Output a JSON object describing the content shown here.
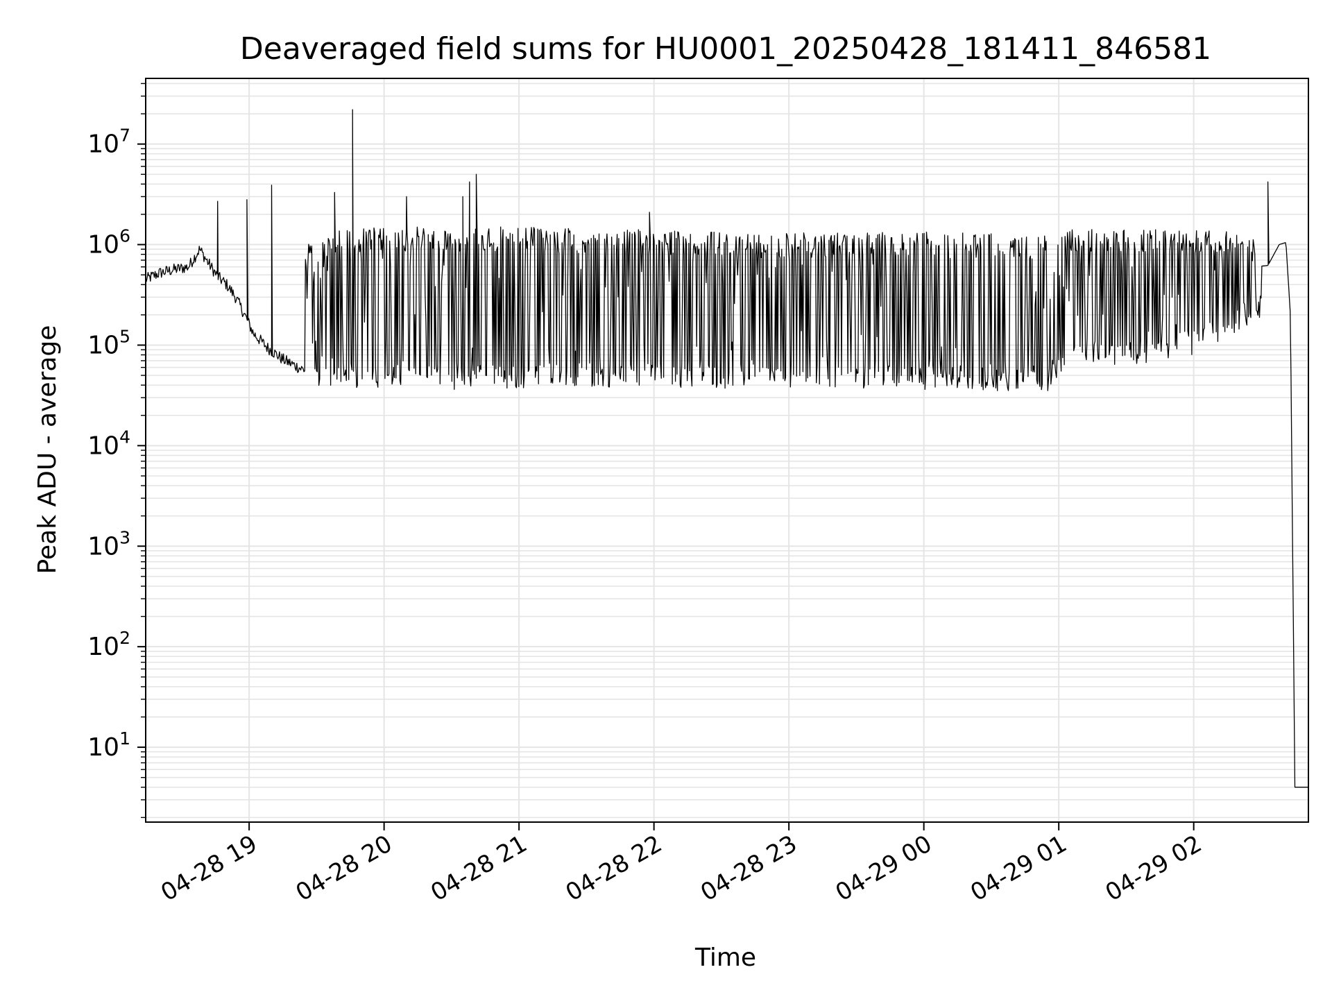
{
  "chart_data": {
    "type": "line",
    "title": "Deaveraged field sums for HU0001_20250428_181411_846581",
    "xlabel": "Time",
    "ylabel": "Peak ADU - average",
    "yscale": "log",
    "ylim": [
      1.8,
      45000000
    ],
    "xlim": [
      "04-28 18:14",
      "04-29 02:51"
    ],
    "grid": true,
    "x_ticks": [
      {
        "t": "04-28 19:00",
        "label": "04-28 19"
      },
      {
        "t": "04-28 20:00",
        "label": "04-28 20"
      },
      {
        "t": "04-28 21:00",
        "label": "04-28 21"
      },
      {
        "t": "04-28 22:00",
        "label": "04-28 22"
      },
      {
        "t": "04-28 23:00",
        "label": "04-28 23"
      },
      {
        "t": "04-29 00:00",
        "label": "04-29 00"
      },
      {
        "t": "04-29 01:00",
        "label": "04-29 01"
      },
      {
        "t": "04-29 02:00",
        "label": "04-29 02"
      }
    ],
    "y_ticks": [
      {
        "v": 10,
        "base": "10",
        "exp": "1"
      },
      {
        "v": 100,
        "base": "10",
        "exp": "2"
      },
      {
        "v": 1000,
        "base": "10",
        "exp": "3"
      },
      {
        "v": 10000,
        "base": "10",
        "exp": "4"
      },
      {
        "v": 100000,
        "base": "10",
        "exp": "5"
      },
      {
        "v": 1000000,
        "base": "10",
        "exp": "6"
      },
      {
        "v": 10000000,
        "base": "10",
        "exp": "7"
      }
    ],
    "line_color": "#000000",
    "grid_color": "#e5e5e5",
    "series": [
      {
        "x": [
          "04-28 18:14",
          "04-28 18:20",
          "04-28 18:26",
          "04-28 18:33",
          "04-28 18:38",
          "04-28 18:42",
          "04-28 18:46",
          "04-28 18:50",
          "04-28 18:54",
          "04-28 18:58",
          "04-28 19:02",
          "04-28 19:08",
          "04-28 19:15",
          "04-28 19:22",
          "04-28 19:28",
          "04-28 19:35",
          "04-28 19:45",
          "04-28 19:55",
          "04-28 20:05",
          "04-28 20:20",
          "04-28 20:40",
          "04-28 21:00",
          "04-28 21:30",
          "04-28 22:00",
          "04-28 22:30",
          "04-28 23:00",
          "04-28 23:30",
          "04-29 00:00",
          "04-29 00:30",
          "04-29 00:55",
          "04-29 01:00",
          "04-29 01:10",
          "04-29 01:20",
          "04-29 01:40",
          "04-29 02:00",
          "04-29 02:20",
          "04-29 02:33",
          "04-29 02:38",
          "04-29 02:41",
          "04-29 02:43",
          "04-29 02:45",
          "04-29 02:51"
        ],
        "y": [
          450000,
          520000,
          560000,
          600000,
          900000,
          650000,
          480000,
          400000,
          300000,
          200000,
          130000,
          95000,
          72000,
          60000,
          52000,
          46000,
          44000,
          45000,
          46000,
          48000,
          50000,
          52000,
          55000,
          60000,
          70000,
          80000,
          85000,
          78000,
          70000,
          68000,
          190000,
          250000,
          350000,
          500000,
          600000,
          580000,
          620000,
          1000000,
          1050000,
          200000,
          4,
          4
        ]
      }
    ],
    "envelope": {
      "x": [
        "04-28 19:25",
        "04-28 19:40",
        "04-28 19:50",
        "04-28 20:00",
        "04-28 20:30",
        "04-28 21:00",
        "04-28 21:30",
        "04-28 22:00",
        "04-28 22:30",
        "04-28 23:00",
        "04-28 23:30",
        "04-29 00:00",
        "04-29 00:30",
        "04-29 00:55",
        "04-29 01:05",
        "04-29 01:30",
        "04-29 02:00",
        "04-29 02:30"
      ],
      "upper": [
        1000000,
        1400000,
        1450000,
        1500000,
        1500000,
        1500000,
        1450000,
        1400000,
        1350000,
        1300000,
        1350000,
        1350000,
        1300000,
        1250000,
        1400000,
        1500000,
        1450000,
        1400000
      ],
      "lower": [
        40000,
        38000,
        37000,
        38000,
        36000,
        37000,
        38000,
        38000,
        37000,
        36000,
        36000,
        36000,
        35000,
        35000,
        70000,
        60000,
        80000,
        180000
      ]
    },
    "spikes": [
      {
        "x": "04-28 18:46",
        "y": 2700000
      },
      {
        "x": "04-28 18:59",
        "y": 2800000
      },
      {
        "x": "04-28 19:10",
        "y": 3900000
      },
      {
        "x": "04-28 19:38",
        "y": 3300000
      },
      {
        "x": "04-28 19:46",
        "y": 22000000
      },
      {
        "x": "04-28 20:10",
        "y": 3000000
      },
      {
        "x": "04-28 20:35",
        "y": 3000000
      },
      {
        "x": "04-28 20:38",
        "y": 4200000
      },
      {
        "x": "04-28 20:41",
        "y": 5000000
      },
      {
        "x": "04-28 21:58",
        "y": 2100000
      },
      {
        "x": "04-29 02:33",
        "y": 4200000
      }
    ]
  }
}
